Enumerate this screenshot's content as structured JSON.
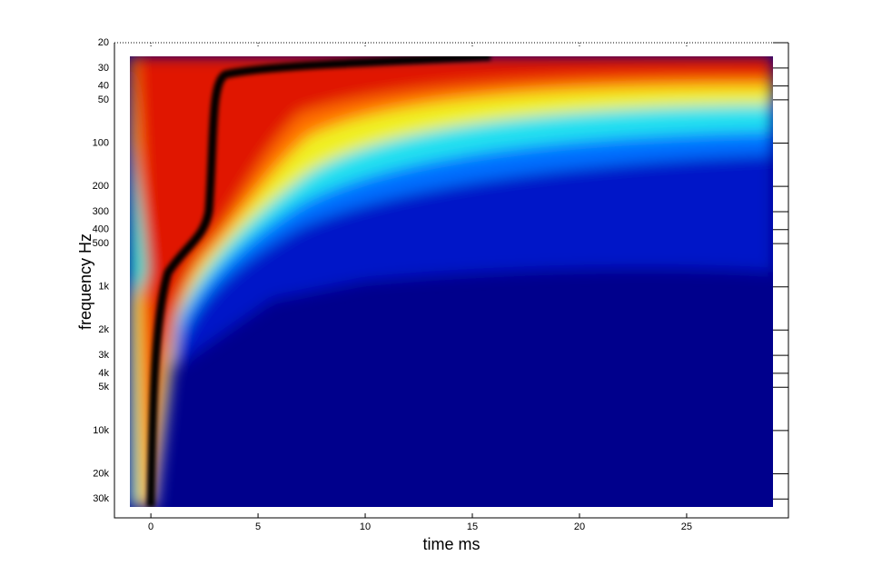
{
  "chart_data": {
    "type": "spectrogram",
    "xlabel": "time   ms",
    "ylabel": "frequency   Hz",
    "xlim": [
      -1.7,
      29.75
    ],
    "xticks": [
      0,
      5,
      10,
      15,
      20,
      25
    ],
    "yscale": "log",
    "ylim": [
      20,
      40550
    ],
    "yticks": [
      20,
      30,
      40,
      50,
      100,
      200,
      300,
      400,
      500,
      {
        "value": 1000,
        "label": "1k"
      },
      {
        "value": 2000,
        "label": "2k"
      },
      {
        "value": 3000,
        "label": "3k"
      },
      {
        "value": 4000,
        "label": "4k"
      },
      {
        "value": 5000,
        "label": "5k"
      },
      {
        "value": 10000,
        "label": "10k"
      },
      {
        "value": 20000,
        "label": "20k"
      },
      {
        "value": 30000,
        "label": "30k"
      }
    ]
  }
}
